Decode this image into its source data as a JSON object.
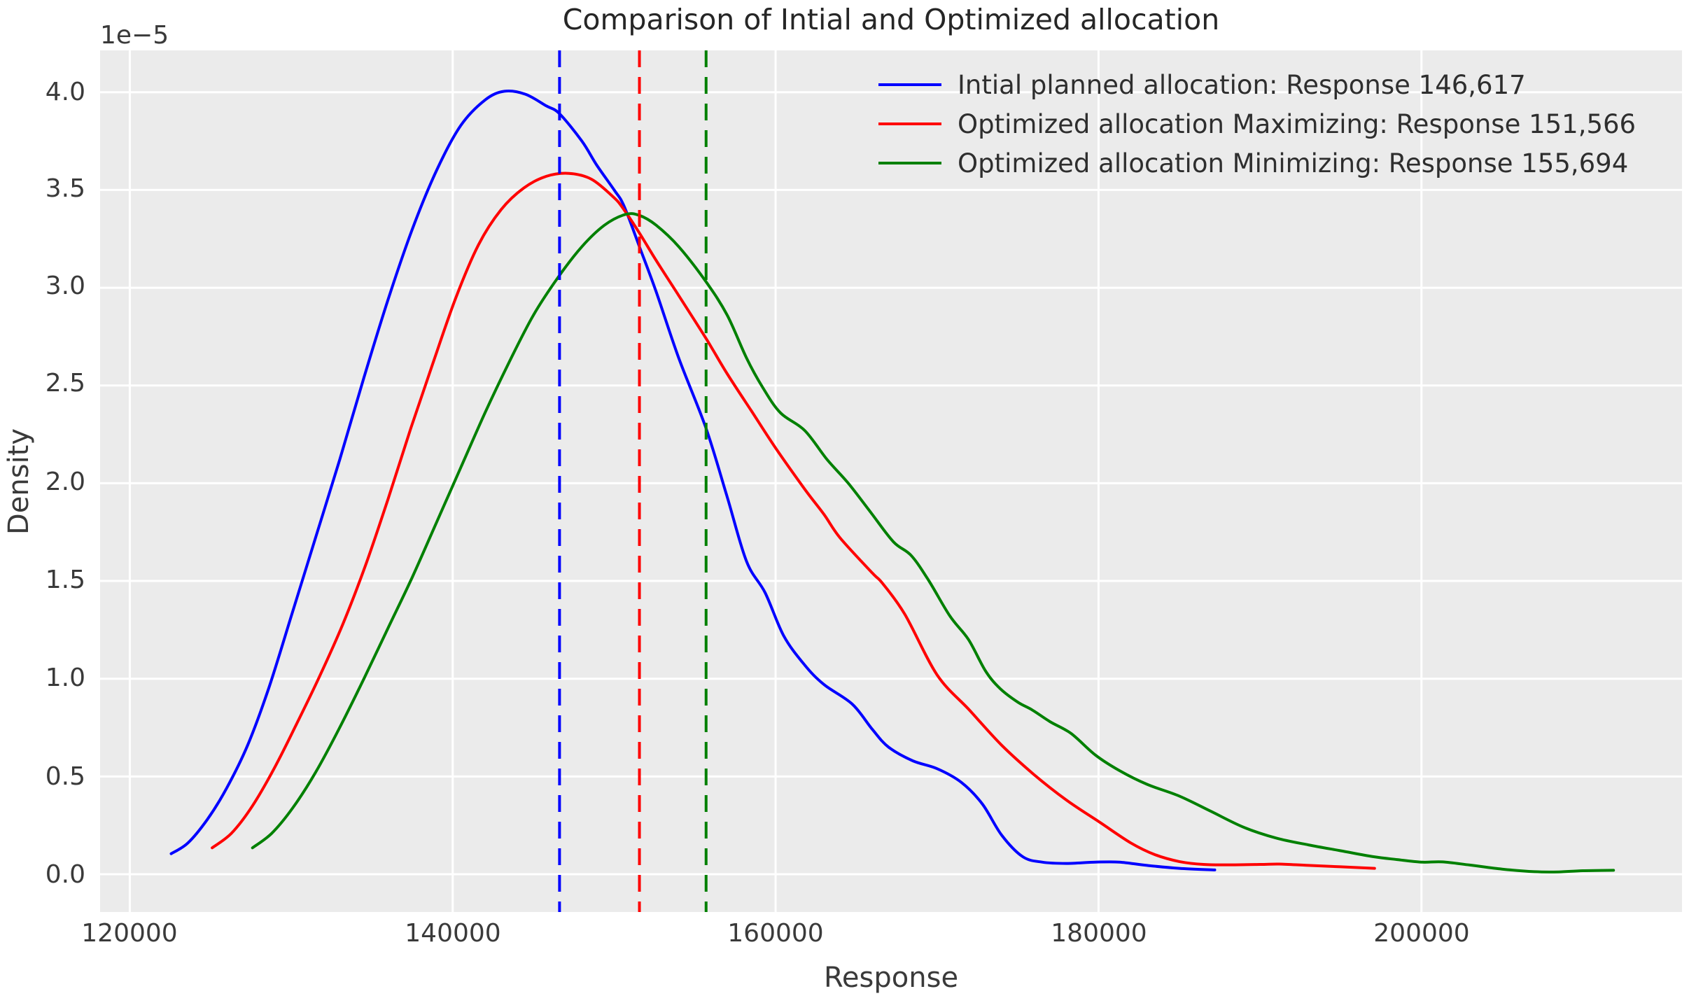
{
  "figure": {
    "background_color": "#ffffff",
    "axes_background_color": "#ebebeb",
    "grid_color": "#ffffff",
    "text_color": "#3a3a3a"
  },
  "chart_data": {
    "type": "line",
    "title": "Comparison of Intial and Optimized allocation",
    "xlabel": "Response",
    "ylabel": "Density",
    "y_offset_label": "1e−5",
    "grid": true,
    "legend_position": "upper right",
    "xlim": [
      118160,
      216140
    ],
    "ylim_1e5": [
      -0.1933,
      4.214
    ],
    "x_ticks": [
      120000,
      140000,
      160000,
      180000,
      200000
    ],
    "x_tick_labels": [
      "120000",
      "140000",
      "160000",
      "180000",
      "200000"
    ],
    "y_ticks_1e5": [
      0.0,
      0.5,
      1.0,
      1.5,
      2.0,
      2.5,
      3.0,
      3.5,
      4.0
    ],
    "y_tick_labels": [
      "0.0",
      "0.5",
      "1.0",
      "1.5",
      "2.0",
      "2.5",
      "3.0",
      "3.5",
      "4.0"
    ],
    "y_scale_note": "density values are in units of 1e-5",
    "vlines": [
      {
        "id": "initial-mean-line",
        "x": 146617,
        "color": "#0000ff",
        "style": "dashed"
      },
      {
        "id": "maximizing-mean-line",
        "x": 151566,
        "color": "#ff0000",
        "style": "dashed"
      },
      {
        "id": "minimizing-mean-line",
        "x": 155694,
        "color": "#008000",
        "style": "dashed"
      }
    ],
    "series": [
      {
        "id": "initial-planned",
        "name": "Intial planned allocation: Response 146,617",
        "color": "#0000ff",
        "mean_response": 146617,
        "points": [
          [
            122560,
            0.105
          ],
          [
            123600,
            0.16
          ],
          [
            124800,
            0.28
          ],
          [
            126000,
            0.44
          ],
          [
            127300,
            0.66
          ],
          [
            128600,
            0.95
          ],
          [
            130000,
            1.32
          ],
          [
            131500,
            1.72
          ],
          [
            133000,
            2.12
          ],
          [
            134500,
            2.54
          ],
          [
            136000,
            2.94
          ],
          [
            137500,
            3.3
          ],
          [
            139000,
            3.6
          ],
          [
            140500,
            3.83
          ],
          [
            142000,
            3.96
          ],
          [
            143200,
            4.005
          ],
          [
            144500,
            3.99
          ],
          [
            145800,
            3.93
          ],
          [
            146617,
            3.89
          ],
          [
            148000,
            3.75
          ],
          [
            148900,
            3.63
          ],
          [
            150000,
            3.5
          ],
          [
            150600,
            3.42
          ],
          [
            151566,
            3.21
          ],
          [
            152600,
            2.98
          ],
          [
            154000,
            2.64
          ],
          [
            155694,
            2.28
          ],
          [
            157000,
            1.93
          ],
          [
            158200,
            1.6
          ],
          [
            159350,
            1.44
          ],
          [
            160500,
            1.22
          ],
          [
            161800,
            1.07
          ],
          [
            163000,
            0.97
          ],
          [
            164750,
            0.87
          ],
          [
            166000,
            0.74
          ],
          [
            167000,
            0.65
          ],
          [
            168500,
            0.58
          ],
          [
            170000,
            0.54
          ],
          [
            171500,
            0.47
          ],
          [
            172800,
            0.36
          ],
          [
            174000,
            0.2
          ],
          [
            175300,
            0.09
          ],
          [
            176500,
            0.062
          ],
          [
            178000,
            0.055
          ],
          [
            179800,
            0.062
          ],
          [
            181300,
            0.062
          ],
          [
            183000,
            0.045
          ],
          [
            185000,
            0.03
          ],
          [
            187200,
            0.022
          ]
        ]
      },
      {
        "id": "optimized-maximizing",
        "name": "Optimized allocation Maximizing: Response 151,566",
        "color": "#ff0000",
        "mean_response": 151566,
        "points": [
          [
            125100,
            0.135
          ],
          [
            126300,
            0.21
          ],
          [
            127600,
            0.35
          ],
          [
            129000,
            0.55
          ],
          [
            130400,
            0.78
          ],
          [
            131800,
            1.02
          ],
          [
            133200,
            1.28
          ],
          [
            134600,
            1.58
          ],
          [
            136000,
            1.92
          ],
          [
            137400,
            2.28
          ],
          [
            138800,
            2.62
          ],
          [
            140200,
            2.95
          ],
          [
            141600,
            3.22
          ],
          [
            143000,
            3.4
          ],
          [
            144400,
            3.51
          ],
          [
            145800,
            3.57
          ],
          [
            147200,
            3.585
          ],
          [
            148600,
            3.555
          ],
          [
            150000,
            3.46
          ],
          [
            150600,
            3.4
          ],
          [
            151566,
            3.28
          ],
          [
            152600,
            3.14
          ],
          [
            154000,
            2.96
          ],
          [
            155694,
            2.74
          ],
          [
            157000,
            2.56
          ],
          [
            158500,
            2.37
          ],
          [
            160000,
            2.18
          ],
          [
            161800,
            1.97
          ],
          [
            163000,
            1.84
          ],
          [
            164000,
            1.72
          ],
          [
            166000,
            1.54
          ],
          [
            166600,
            1.49
          ],
          [
            168000,
            1.33
          ],
          [
            170000,
            1.02
          ],
          [
            172000,
            0.84
          ],
          [
            174000,
            0.66
          ],
          [
            176000,
            0.51
          ],
          [
            178000,
            0.38
          ],
          [
            180000,
            0.27
          ],
          [
            182000,
            0.16
          ],
          [
            183500,
            0.1
          ],
          [
            185000,
            0.065
          ],
          [
            186500,
            0.05
          ],
          [
            188000,
            0.048
          ],
          [
            190000,
            0.05
          ],
          [
            191200,
            0.052
          ],
          [
            193000,
            0.045
          ],
          [
            195000,
            0.038
          ],
          [
            197100,
            0.03
          ]
        ]
      },
      {
        "id": "optimized-minimizing",
        "name": "Optimized allocation Minimizing: Response 155,694",
        "color": "#008000",
        "mean_response": 155694,
        "points": [
          [
            127600,
            0.135
          ],
          [
            128800,
            0.21
          ],
          [
            130100,
            0.34
          ],
          [
            131500,
            0.52
          ],
          [
            133000,
            0.75
          ],
          [
            134500,
            1.0
          ],
          [
            136000,
            1.26
          ],
          [
            137500,
            1.52
          ],
          [
            139000,
            1.8
          ],
          [
            140500,
            2.08
          ],
          [
            142000,
            2.36
          ],
          [
            143500,
            2.62
          ],
          [
            145000,
            2.86
          ],
          [
            146500,
            3.05
          ],
          [
            148000,
            3.21
          ],
          [
            149400,
            3.32
          ],
          [
            150700,
            3.375
          ],
          [
            151566,
            3.37
          ],
          [
            152600,
            3.32
          ],
          [
            154000,
            3.21
          ],
          [
            155694,
            3.03
          ],
          [
            157000,
            2.86
          ],
          [
            158200,
            2.64
          ],
          [
            159200,
            2.49
          ],
          [
            160300,
            2.36
          ],
          [
            161800,
            2.27
          ],
          [
            163200,
            2.12
          ],
          [
            164500,
            2.0
          ],
          [
            165900,
            1.85
          ],
          [
            167300,
            1.7
          ],
          [
            168400,
            1.63
          ],
          [
            169500,
            1.5
          ],
          [
            170800,
            1.32
          ],
          [
            171950,
            1.2
          ],
          [
            173000,
            1.04
          ],
          [
            173900,
            0.95
          ],
          [
            175000,
            0.88
          ],
          [
            175900,
            0.84
          ],
          [
            177000,
            0.78
          ],
          [
            178300,
            0.72
          ],
          [
            179800,
            0.61
          ],
          [
            181300,
            0.53
          ],
          [
            183000,
            0.46
          ],
          [
            185000,
            0.4
          ],
          [
            187000,
            0.32
          ],
          [
            189000,
            0.24
          ],
          [
            191000,
            0.185
          ],
          [
            193000,
            0.15
          ],
          [
            195000,
            0.12
          ],
          [
            197000,
            0.09
          ],
          [
            198500,
            0.075
          ],
          [
            200000,
            0.062
          ],
          [
            201300,
            0.063
          ],
          [
            203000,
            0.047
          ],
          [
            205000,
            0.026
          ],
          [
            207000,
            0.013
          ],
          [
            208500,
            0.012
          ],
          [
            210000,
            0.018
          ],
          [
            211900,
            0.02
          ]
        ]
      }
    ]
  }
}
